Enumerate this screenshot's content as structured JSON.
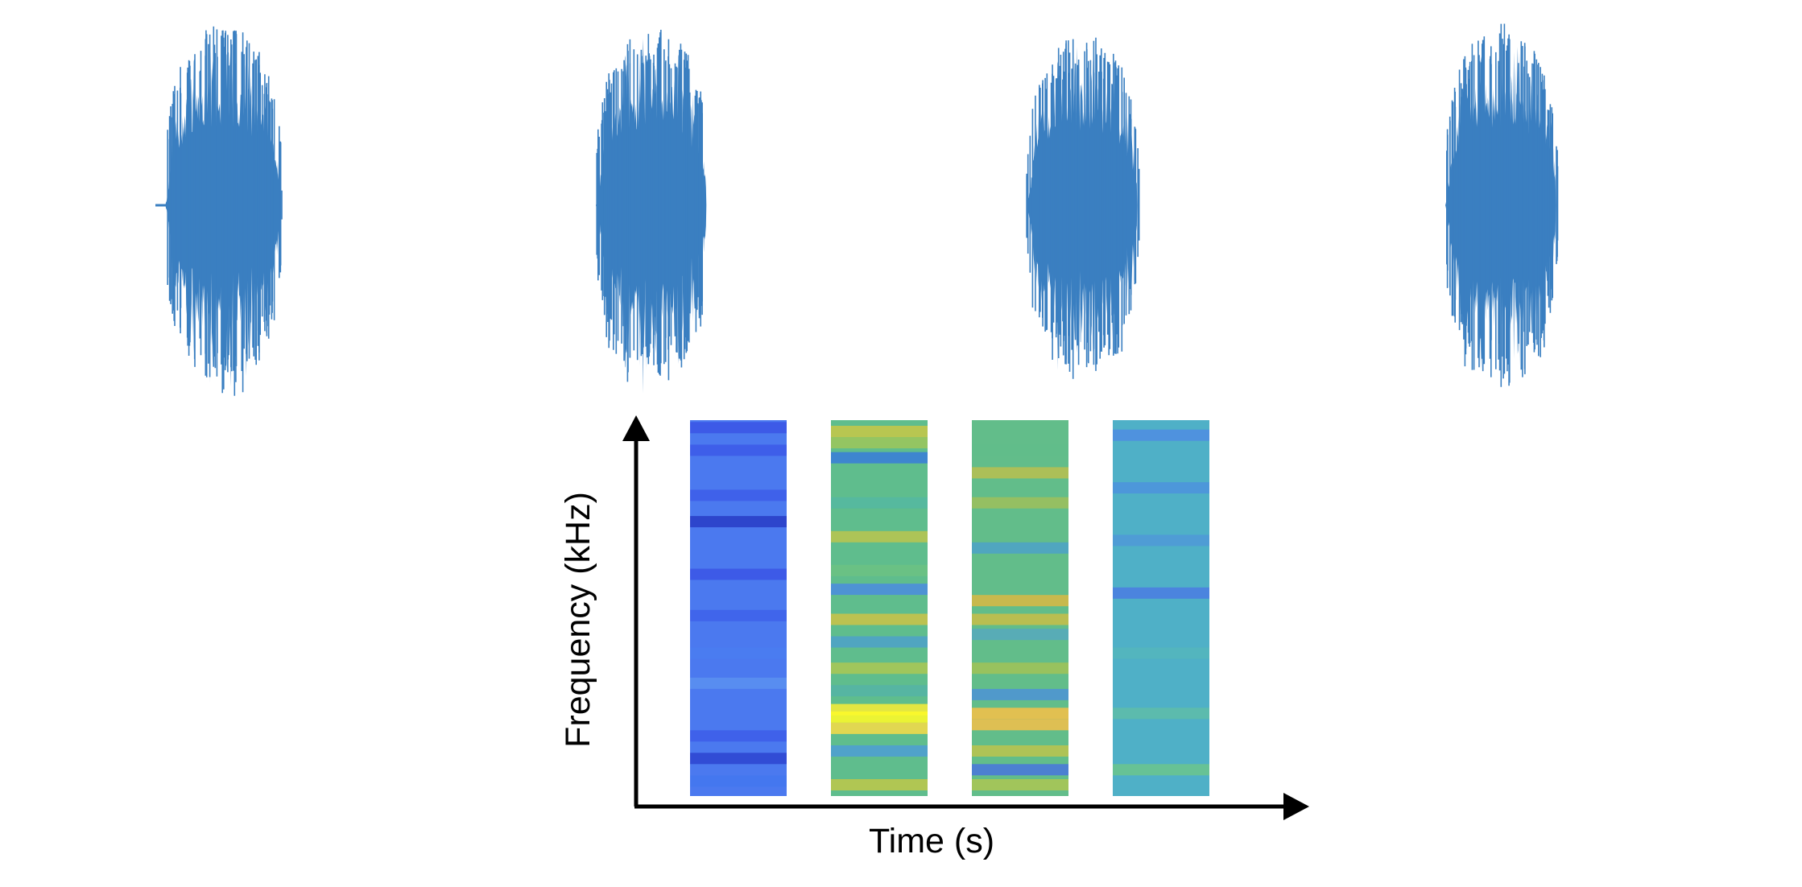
{
  "figure": {
    "xlabel": "Time (s)",
    "ylabel": "Frequency (kHz)",
    "waveform_color": "#3a7fc1",
    "axis_color": "#000000",
    "waveforms": [
      {
        "name": "waveform-1"
      },
      {
        "name": "waveform-2"
      },
      {
        "name": "waveform-3"
      },
      {
        "name": "waveform-4"
      }
    ],
    "spectrogram_columns": [
      {
        "name": "spectrogram-column-1",
        "base_color": "#4b79ef",
        "stripes": [
          {
            "pos": 0.02,
            "color": "#3c57e6"
          },
          {
            "pos": 0.08,
            "color": "#3d5be8"
          },
          {
            "pos": 0.2,
            "color": "#3e5ee9"
          },
          {
            "pos": 0.27,
            "color": "#2a3fc8"
          },
          {
            "pos": 0.41,
            "color": "#3c57e6"
          },
          {
            "pos": 0.52,
            "color": "#3f63ea"
          },
          {
            "pos": 0.62,
            "color": "#4a7cf0"
          },
          {
            "pos": 0.7,
            "color": "#5a8fef"
          },
          {
            "pos": 0.84,
            "color": "#3e5ee9"
          },
          {
            "pos": 0.9,
            "color": "#2f47d2"
          },
          {
            "pos": 0.96,
            "color": "#4477ee"
          }
        ]
      },
      {
        "name": "spectrogram-column-2",
        "base_color": "#5fbd8d",
        "stripes": [
          {
            "pos": 0.03,
            "color": "#c2c64a"
          },
          {
            "pos": 0.06,
            "color": "#9ac55d"
          },
          {
            "pos": 0.1,
            "color": "#3b7fd6"
          },
          {
            "pos": 0.22,
            "color": "#55b8a0"
          },
          {
            "pos": 0.31,
            "color": "#b6c451"
          },
          {
            "pos": 0.4,
            "color": "#6cc183"
          },
          {
            "pos": 0.45,
            "color": "#4c8edb"
          },
          {
            "pos": 0.53,
            "color": "#c6c24a"
          },
          {
            "pos": 0.59,
            "color": "#4fa2c6"
          },
          {
            "pos": 0.66,
            "color": "#a7c657"
          },
          {
            "pos": 0.72,
            "color": "#55b4a4"
          },
          {
            "pos": 0.77,
            "color": "#f2ea3a"
          },
          {
            "pos": 0.79,
            "color": "#fbf82a"
          },
          {
            "pos": 0.82,
            "color": "#f0d94a"
          },
          {
            "pos": 0.88,
            "color": "#4f9ed0"
          },
          {
            "pos": 0.97,
            "color": "#b9c64c"
          }
        ]
      },
      {
        "name": "spectrogram-column-3",
        "base_color": "#62bd8a",
        "stripes": [
          {
            "pos": 0.08,
            "color": "#62bd8a"
          },
          {
            "pos": 0.14,
            "color": "#b5bf52"
          },
          {
            "pos": 0.22,
            "color": "#9bbf5d"
          },
          {
            "pos": 0.34,
            "color": "#4fa3c4"
          },
          {
            "pos": 0.48,
            "color": "#d4b846"
          },
          {
            "pos": 0.53,
            "color": "#c3be4a"
          },
          {
            "pos": 0.57,
            "color": "#58aaba"
          },
          {
            "pos": 0.66,
            "color": "#9ec259"
          },
          {
            "pos": 0.73,
            "color": "#4f95d1"
          },
          {
            "pos": 0.78,
            "color": "#f0c04a"
          },
          {
            "pos": 0.81,
            "color": "#ecbf4c"
          },
          {
            "pos": 0.88,
            "color": "#b8c350"
          },
          {
            "pos": 0.93,
            "color": "#4a79d8"
          },
          {
            "pos": 0.97,
            "color": "#a8c555"
          }
        ]
      },
      {
        "name": "spectrogram-column-4",
        "base_color": "#4fb0c7",
        "stripes": [
          {
            "pos": 0.04,
            "color": "#4f8fe0"
          },
          {
            "pos": 0.18,
            "color": "#4c95db"
          },
          {
            "pos": 0.32,
            "color": "#4f9ad6"
          },
          {
            "pos": 0.46,
            "color": "#4a7fe0"
          },
          {
            "pos": 0.62,
            "color": "#53b6bd"
          },
          {
            "pos": 0.78,
            "color": "#5dbcaa"
          },
          {
            "pos": 0.93,
            "color": "#69c48f"
          }
        ]
      }
    ]
  }
}
